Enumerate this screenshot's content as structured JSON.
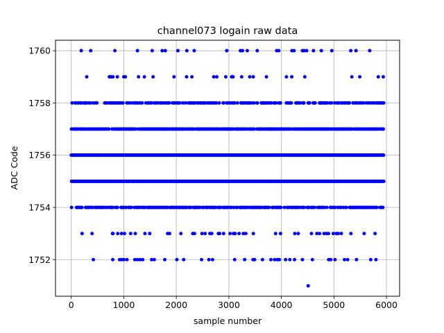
{
  "chart_data": {
    "type": "scatter",
    "title": "channel073 logain raw data",
    "xlabel": "sample number",
    "ylabel": "ADC Code",
    "xlim": [
      -300,
      6250
    ],
    "ylim": [
      1750.6,
      1760.4
    ],
    "xticks": [
      0,
      1000,
      2000,
      3000,
      4000,
      5000,
      6000
    ],
    "yticks": [
      1752,
      1754,
      1756,
      1758,
      1760
    ],
    "grid": true,
    "marker_color": "#0000ff",
    "x_range": [
      0,
      5950
    ],
    "level_density": {
      "1751": 0.0002,
      "1752": 0.012,
      "1753": 0.09,
      "1754": 0.55,
      "1755": 1.0,
      "1756": 1.0,
      "1757": 0.8,
      "1758": 0.4,
      "1759": 0.06,
      "1760": 0.015
    },
    "points": [
      [
        4510,
        1751
      ],
      [
        420,
        1752
      ],
      [
        790,
        1752
      ],
      [
        920,
        1752
      ],
      [
        960,
        1752
      ],
      [
        1000,
        1752
      ],
      [
        1060,
        1752
      ],
      [
        1210,
        1752
      ],
      [
        1260,
        1752
      ],
      [
        1310,
        1752
      ],
      [
        1360,
        1752
      ],
      [
        1530,
        1752
      ],
      [
        1580,
        1752
      ],
      [
        1780,
        1752
      ],
      [
        2010,
        1752
      ],
      [
        2140,
        1752
      ],
      [
        2480,
        1752
      ],
      [
        2620,
        1752
      ],
      [
        2690,
        1752
      ],
      [
        3110,
        1752
      ],
      [
        3300,
        1752
      ],
      [
        3460,
        1752
      ],
      [
        3490,
        1752
      ],
      [
        3640,
        1752
      ],
      [
        3800,
        1752
      ],
      [
        3870,
        1752
      ],
      [
        3920,
        1752
      ],
      [
        3960,
        1752
      ],
      [
        4080,
        1752
      ],
      [
        4160,
        1752
      ],
      [
        4250,
        1752
      ],
      [
        4400,
        1752
      ],
      [
        4590,
        1752
      ],
      [
        4900,
        1752
      ],
      [
        4940,
        1752
      ],
      [
        5020,
        1752
      ],
      [
        5200,
        1752
      ],
      [
        5260,
        1752
      ],
      [
        5430,
        1752
      ],
      [
        5700,
        1752
      ],
      [
        5800,
        1752
      ],
      [
        190,
        1760
      ],
      [
        370,
        1760
      ],
      [
        830,
        1760
      ],
      [
        1260,
        1760
      ],
      [
        1540,
        1760
      ],
      [
        1730,
        1760
      ],
      [
        1790,
        1760
      ],
      [
        2030,
        1760
      ],
      [
        2200,
        1760
      ],
      [
        2340,
        1760
      ],
      [
        2960,
        1760
      ],
      [
        3220,
        1760
      ],
      [
        3260,
        1760
      ],
      [
        3350,
        1760
      ],
      [
        3540,
        1760
      ],
      [
        3910,
        1760
      ],
      [
        3950,
        1760
      ],
      [
        4200,
        1760
      ],
      [
        4240,
        1760
      ],
      [
        4400,
        1760
      ],
      [
        4430,
        1760
      ],
      [
        4480,
        1760
      ],
      [
        4610,
        1760
      ],
      [
        4760,
        1760
      ],
      [
        4960,
        1760
      ],
      [
        5320,
        1760
      ],
      [
        5420,
        1760
      ],
      [
        5680,
        1760
      ]
    ]
  }
}
